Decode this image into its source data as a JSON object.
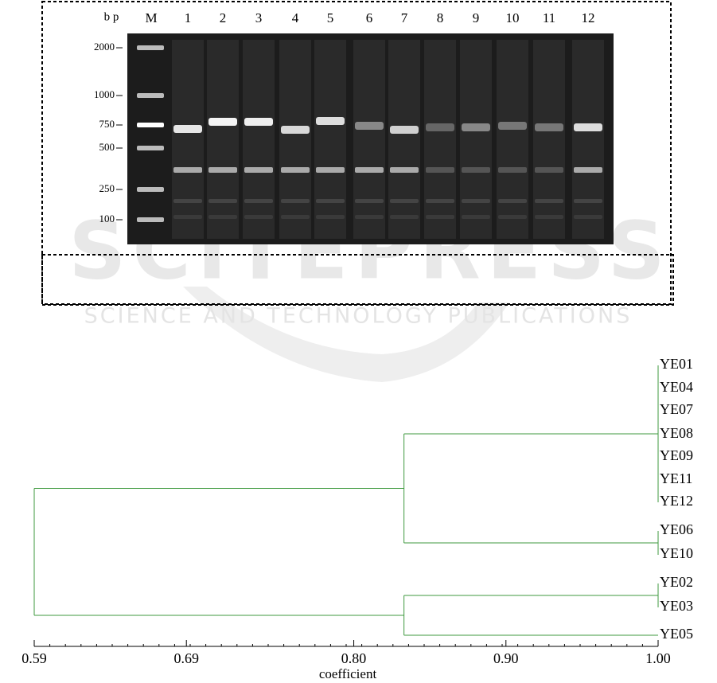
{
  "watermark": {
    "title": "SCITEPRESS",
    "subtitle": "SCIENCE AND TECHNOLOGY PUBLICATIONS"
  },
  "gel": {
    "bp_label": "b p",
    "lanes": [
      "M",
      "1",
      "2",
      "3",
      "4",
      "5",
      "6",
      "7",
      "8",
      "9",
      "10",
      "11",
      "12"
    ],
    "marker_sizes": [
      "2000",
      "1000",
      "750",
      "500",
      "250",
      "100"
    ]
  },
  "chart_data": {
    "type": "dendrogram",
    "leaves": [
      "YE01",
      "YE04",
      "YE07",
      "YE08",
      "YE09",
      "YE11",
      "YE12",
      "YE06",
      "YE10",
      "YE02",
      "YE03",
      "YE05"
    ],
    "clusters": [
      {
        "leaves": [
          0,
          1,
          2,
          3,
          4,
          5,
          6
        ],
        "height": 1.0
      },
      {
        "leaves": [
          7,
          8
        ],
        "height": 1.0
      },
      {
        "leaves": [
          9,
          10
        ],
        "height": 1.0
      },
      {
        "clusters": [
          0,
          1
        ],
        "height": 0.833
      },
      {
        "clusters": [
          2
        ],
        "leaves": [
          11
        ],
        "height": 0.833
      },
      {
        "clusters": [
          3,
          4
        ],
        "height": 0.59
      }
    ],
    "xlim": [
      0.59,
      1.0
    ],
    "xticks": [
      0.59,
      0.69,
      {
        "value": 0.8,
        "label": "0.80"
      },
      {
        "value": 0.9,
        "label": "0.90"
      },
      {
        "value": 1.0,
        "label": "1.00"
      }
    ],
    "xlabel": "coefficient",
    "color": "#3f9a3f"
  }
}
